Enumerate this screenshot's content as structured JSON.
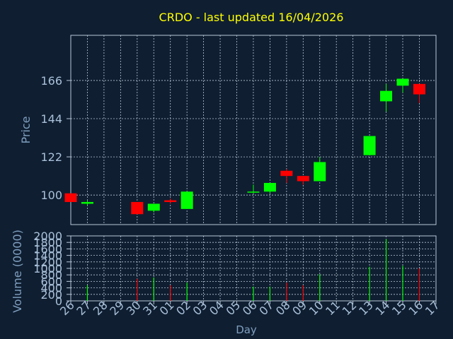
{
  "title": "CRDO - last updated 16/04/2026",
  "colors": {
    "background": "#0f1e31",
    "title": "#ffff00",
    "axis_text": "#7f9fbf",
    "tick_text": "#a9c1d9",
    "grid": "#b9c8d8",
    "up": "#00ff00",
    "down": "#ff0000"
  },
  "chart_data": [
    {
      "type": "candlestick",
      "ylabel": "Price",
      "ylim": [
        83,
        192
      ],
      "yticks": [
        100,
        122,
        144,
        166
      ],
      "grid": true,
      "x_tick_labels": [
        "26",
        "27",
        "28",
        "29",
        "30",
        "31",
        "01",
        "02",
        "03",
        "04",
        "05",
        "06",
        "07",
        "08",
        "09",
        "10",
        "11",
        "12",
        "13",
        "14",
        "15",
        "16",
        "17"
      ],
      "candles": [
        {
          "day": "26",
          "open": 101,
          "close": 96,
          "high": 101,
          "low": 96
        },
        {
          "day": "27",
          "open": 95,
          "close": 96,
          "high": 97,
          "low": 94
        },
        {
          "day": "30",
          "open": 96,
          "close": 89,
          "high": 96,
          "low": 89
        },
        {
          "day": "31",
          "open": 91,
          "close": 95,
          "high": 95,
          "low": 90
        },
        {
          "day": "01",
          "open": 97,
          "close": 96,
          "high": 98,
          "low": 95
        },
        {
          "day": "02",
          "open": 92,
          "close": 102,
          "high": 102,
          "low": 92
        },
        {
          "day": "06",
          "open": 102,
          "close": 102,
          "high": 106,
          "low": 101
        },
        {
          "day": "07",
          "open": 102,
          "close": 107,
          "high": 107,
          "low": 101
        },
        {
          "day": "08",
          "open": 114,
          "close": 111,
          "high": 115,
          "low": 107
        },
        {
          "day": "09",
          "open": 111,
          "close": 108,
          "high": 111,
          "low": 106
        },
        {
          "day": "10",
          "open": 108,
          "close": 119,
          "high": 122,
          "low": 108
        },
        {
          "day": "13",
          "open": 123,
          "close": 134,
          "high": 134,
          "low": 123
        },
        {
          "day": "14",
          "open": 154,
          "close": 160,
          "high": 164,
          "low": 148
        },
        {
          "day": "15",
          "open": 163,
          "close": 167,
          "high": 167,
          "low": 159
        },
        {
          "day": "16",
          "open": 164,
          "close": 158,
          "high": 164,
          "low": 153
        }
      ]
    },
    {
      "type": "bar",
      "ylabel": "Volume (0000)",
      "xlabel": "Day",
      "ylim": [
        0,
        2000
      ],
      "yticks": [
        0,
        200,
        400,
        600,
        800,
        1000,
        1200,
        1400,
        1600,
        1800,
        2000
      ],
      "grid": true,
      "bars": [
        {
          "day": "27",
          "value": 480,
          "direction": "up"
        },
        {
          "day": "30",
          "value": 680,
          "direction": "down"
        },
        {
          "day": "31",
          "value": 720,
          "direction": "up"
        },
        {
          "day": "01",
          "value": 480,
          "direction": "down"
        },
        {
          "day": "02",
          "value": 560,
          "direction": "up"
        },
        {
          "day": "06",
          "value": 440,
          "direction": "up"
        },
        {
          "day": "07",
          "value": 440,
          "direction": "up"
        },
        {
          "day": "08",
          "value": 560,
          "direction": "down"
        },
        {
          "day": "09",
          "value": 480,
          "direction": "down"
        },
        {
          "day": "10",
          "value": 820,
          "direction": "up"
        },
        {
          "day": "13",
          "value": 1050,
          "direction": "up"
        },
        {
          "day": "14",
          "value": 1900,
          "direction": "up"
        },
        {
          "day": "15",
          "value": 1080,
          "direction": "up"
        },
        {
          "day": "16",
          "value": 1000,
          "direction": "down"
        }
      ]
    }
  ]
}
